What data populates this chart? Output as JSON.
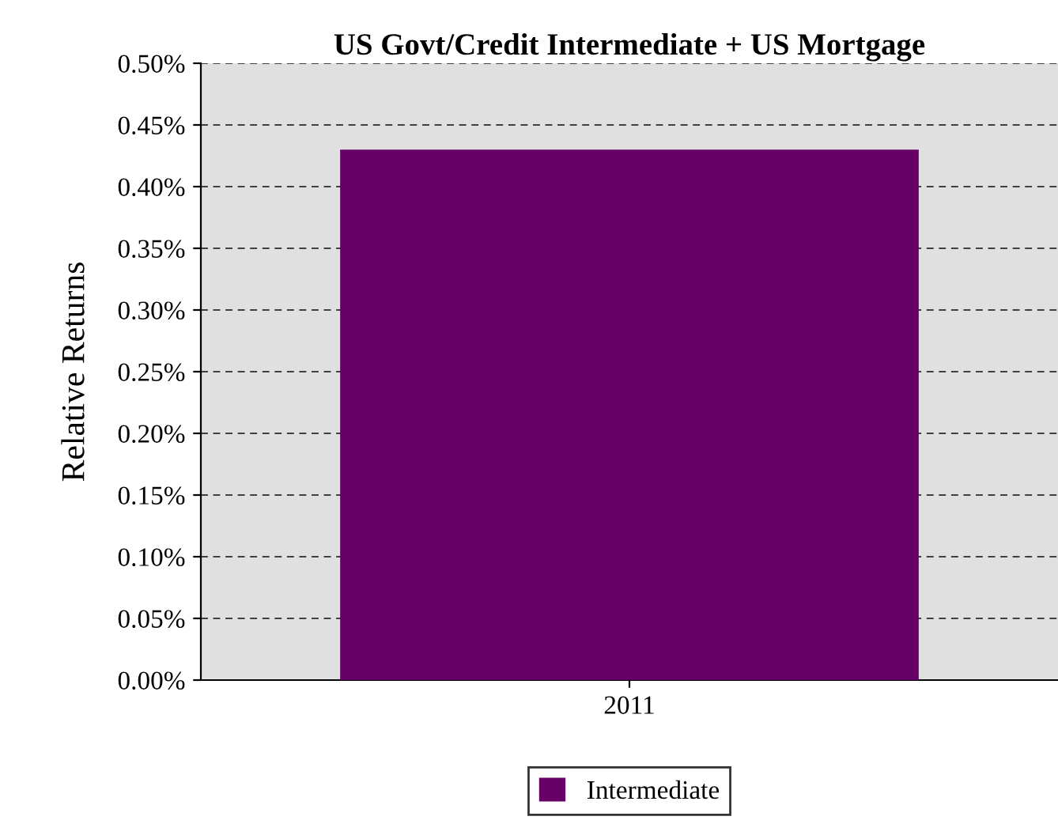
{
  "chart_data": {
    "type": "bar",
    "title": "US Govt/Credit Intermediate + US Mortgage",
    "ylabel": "Relative Returns",
    "categories": [
      "2011"
    ],
    "series": [
      {
        "name": "Intermediate",
        "color": "#660066",
        "values": [
          0.43
        ]
      }
    ],
    "ylim": [
      0,
      0.5
    ],
    "yticks": [
      {
        "value": 0,
        "label": "0.00%"
      },
      {
        "value": 0.05,
        "label": "0.05%"
      },
      {
        "value": 0.1,
        "label": "0.10%"
      },
      {
        "value": 0.15,
        "label": "0.15%"
      },
      {
        "value": 0.2,
        "label": "0.20%"
      },
      {
        "value": 0.25,
        "label": "0.25%"
      },
      {
        "value": 0.3,
        "label": "0.30%"
      },
      {
        "value": 0.35,
        "label": "0.35%"
      },
      {
        "value": 0.4,
        "label": "0.40%"
      },
      {
        "value": 0.45,
        "label": "0.45%"
      },
      {
        "value": 0.5,
        "label": "0.50%"
      }
    ],
    "grid": "y",
    "legend": "bottom"
  }
}
